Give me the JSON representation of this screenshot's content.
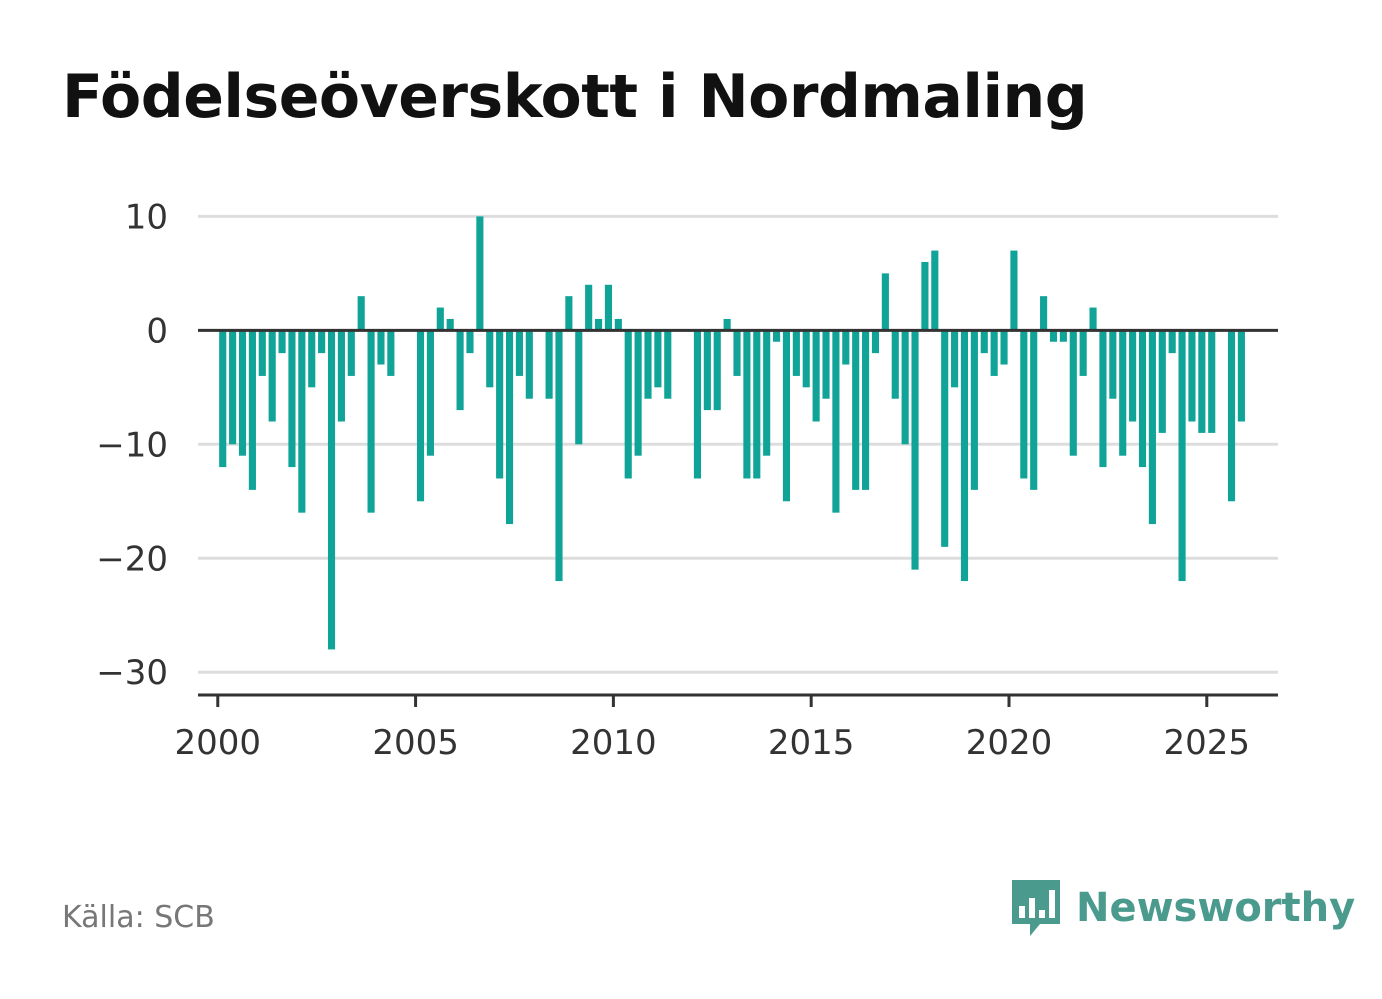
{
  "title": "Födelseöverskott i Nordmaling",
  "source": "Källa: SCB",
  "brand": {
    "name": "Newsworthy",
    "icon": "bar-chart-logo-icon",
    "color": "#4a9a8e"
  },
  "colors": {
    "bar": "#10a398",
    "grid": "#dddddd",
    "zero_line": "#333333",
    "axis": "#333333",
    "text": "#333333"
  },
  "chart_data": {
    "type": "bar",
    "title": "Födelseöverskott i Nordmaling",
    "xlabel": "",
    "ylabel": "",
    "x_start": "2000-01",
    "x_frequency": "quarterly",
    "values": [
      -12,
      -10,
      -11,
      -14,
      -4,
      -8,
      -2,
      -12,
      -16,
      -5,
      -2,
      -28,
      -8,
      -4,
      3,
      -16,
      -3,
      -4,
      0,
      0,
      -15,
      -11,
      2,
      1,
      -7,
      -2,
      10,
      -5,
      -13,
      -17,
      -4,
      -6,
      0,
      -6,
      -22,
      3,
      -10,
      4,
      1,
      4,
      1,
      -13,
      -11,
      -6,
      -5,
      -6,
      0,
      0,
      -13,
      -7,
      -7,
      1,
      -4,
      -13,
      -13,
      -11,
      -1,
      -15,
      -4,
      -5,
      -8,
      -6,
      -16,
      -3,
      -14,
      -14,
      -2,
      5,
      -6,
      -10,
      -21,
      6,
      7,
      -19,
      -5,
      -22,
      -14,
      -2,
      -4,
      -3,
      7,
      -13,
      -14,
      3,
      -1,
      -1,
      -11,
      -4,
      2,
      -12,
      -6,
      -11,
      -8,
      -12,
      -17,
      -9,
      -2,
      -22,
      -8,
      -9,
      -9,
      0,
      -15,
      -8
    ],
    "xlim": [
      1999.5,
      2026.8
    ],
    "ylim": [
      -32,
      11
    ],
    "x_ticks": [
      2000,
      2005,
      2010,
      2015,
      2020,
      2025
    ],
    "x_tick_labels": [
      "2000",
      "2005",
      "2010",
      "2015",
      "2020",
      "2025"
    ],
    "y_ticks": [
      10,
      0,
      -10,
      -20,
      -30
    ],
    "y_tick_labels": [
      "10",
      "0",
      "−10",
      "−20",
      "−30"
    ],
    "grid": true,
    "legend": "none"
  }
}
